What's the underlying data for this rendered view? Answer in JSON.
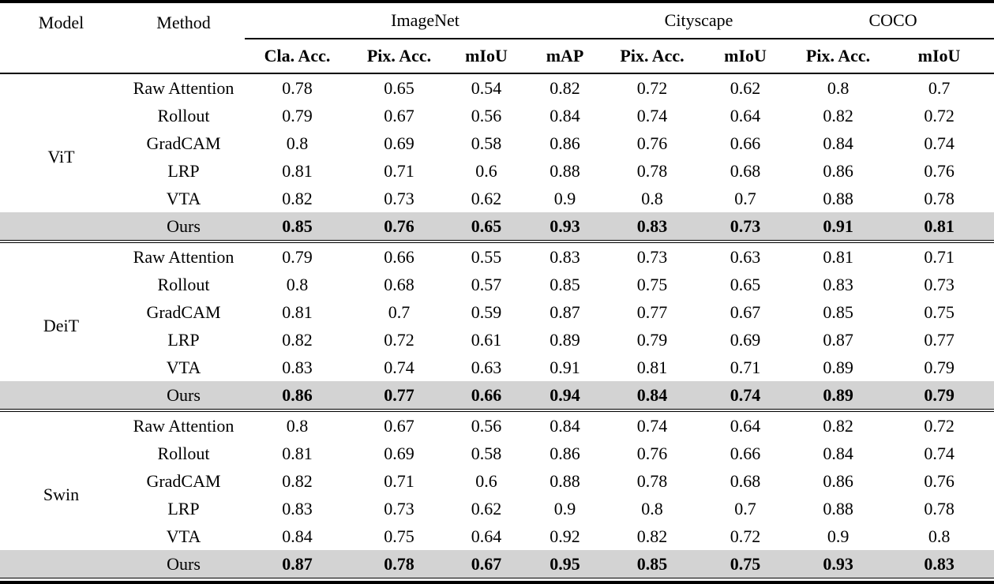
{
  "table": {
    "highlight_color": "#d3d3d3",
    "col_headers": {
      "model": "Model",
      "method": "Method",
      "groups": [
        {
          "label": "ImageNet",
          "subcols": [
            "Cla. Acc.",
            "Pix. Acc.",
            "mIoU",
            "mAP"
          ]
        },
        {
          "label": "Cityscape",
          "subcols": [
            "Pix. Acc.",
            "mIoU"
          ]
        },
        {
          "label": "COCO",
          "subcols": [
            "Pix. Acc.",
            "mIoU"
          ]
        }
      ]
    },
    "row_groups": [
      {
        "model": "ViT",
        "rows": [
          {
            "method": "Raw Attention",
            "highlight": false,
            "values": [
              "0.78",
              "0.65",
              "0.54",
              "0.82",
              "0.72",
              "0.62",
              "0.8",
              "0.7"
            ]
          },
          {
            "method": "Rollout",
            "highlight": false,
            "values": [
              "0.79",
              "0.67",
              "0.56",
              "0.84",
              "0.74",
              "0.64",
              "0.82",
              "0.72"
            ]
          },
          {
            "method": "GradCAM",
            "highlight": false,
            "values": [
              "0.8",
              "0.69",
              "0.58",
              "0.86",
              "0.76",
              "0.66",
              "0.84",
              "0.74"
            ]
          },
          {
            "method": "LRP",
            "highlight": false,
            "values": [
              "0.81",
              "0.71",
              "0.6",
              "0.88",
              "0.78",
              "0.68",
              "0.86",
              "0.76"
            ]
          },
          {
            "method": "VTA",
            "highlight": false,
            "values": [
              "0.82",
              "0.73",
              "0.62",
              "0.9",
              "0.8",
              "0.7",
              "0.88",
              "0.78"
            ]
          },
          {
            "method": "Ours",
            "highlight": true,
            "values": [
              "0.85",
              "0.76",
              "0.65",
              "0.93",
              "0.83",
              "0.73",
              "0.91",
              "0.81"
            ]
          }
        ]
      },
      {
        "model": "DeiT",
        "rows": [
          {
            "method": "Raw Attention",
            "highlight": false,
            "values": [
              "0.79",
              "0.66",
              "0.55",
              "0.83",
              "0.73",
              "0.63",
              "0.81",
              "0.71"
            ]
          },
          {
            "method": "Rollout",
            "highlight": false,
            "values": [
              "0.8",
              "0.68",
              "0.57",
              "0.85",
              "0.75",
              "0.65",
              "0.83",
              "0.73"
            ]
          },
          {
            "method": "GradCAM",
            "highlight": false,
            "values": [
              "0.81",
              "0.7",
              "0.59",
              "0.87",
              "0.77",
              "0.67",
              "0.85",
              "0.75"
            ]
          },
          {
            "method": "LRP",
            "highlight": false,
            "values": [
              "0.82",
              "0.72",
              "0.61",
              "0.89",
              "0.79",
              "0.69",
              "0.87",
              "0.77"
            ]
          },
          {
            "method": "VTA",
            "highlight": false,
            "values": [
              "0.83",
              "0.74",
              "0.63",
              "0.91",
              "0.81",
              "0.71",
              "0.89",
              "0.79"
            ]
          },
          {
            "method": "Ours",
            "highlight": true,
            "values": [
              "0.86",
              "0.77",
              "0.66",
              "0.94",
              "0.84",
              "0.74",
              "0.89",
              "0.79"
            ]
          }
        ]
      },
      {
        "model": "Swin",
        "rows": [
          {
            "method": "Raw Attention",
            "highlight": false,
            "values": [
              "0.8",
              "0.67",
              "0.56",
              "0.84",
              "0.74",
              "0.64",
              "0.82",
              "0.72"
            ]
          },
          {
            "method": "Rollout",
            "highlight": false,
            "values": [
              "0.81",
              "0.69",
              "0.58",
              "0.86",
              "0.76",
              "0.66",
              "0.84",
              "0.74"
            ]
          },
          {
            "method": "GradCAM",
            "highlight": false,
            "values": [
              "0.82",
              "0.71",
              "0.6",
              "0.88",
              "0.78",
              "0.68",
              "0.86",
              "0.76"
            ]
          },
          {
            "method": "LRP",
            "highlight": false,
            "values": [
              "0.83",
              "0.73",
              "0.62",
              "0.9",
              "0.8",
              "0.7",
              "0.88",
              "0.78"
            ]
          },
          {
            "method": "VTA",
            "highlight": false,
            "values": [
              "0.84",
              "0.75",
              "0.64",
              "0.92",
              "0.82",
              "0.72",
              "0.9",
              "0.8"
            ]
          },
          {
            "method": "Ours",
            "highlight": true,
            "values": [
              "0.87",
              "0.78",
              "0.67",
              "0.95",
              "0.85",
              "0.75",
              "0.93",
              "0.83"
            ]
          }
        ]
      }
    ]
  }
}
